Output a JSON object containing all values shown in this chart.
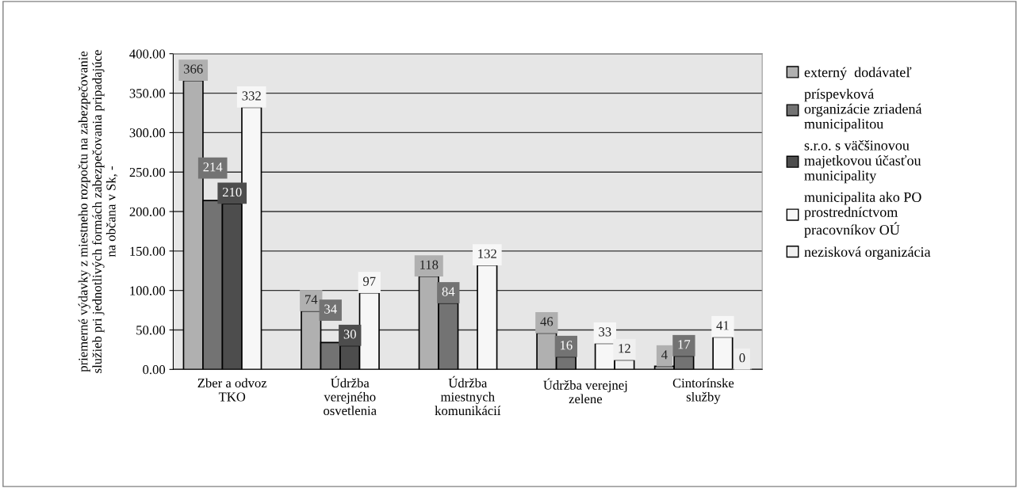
{
  "chart_data": {
    "type": "bar",
    "ylabel": "priemerné výdavky z miestneho rozpočtu na zabezpečovanie\nslužieb pri jednotlivých formách zabezpečovania pripadajúce\nna občana v Sk, -",
    "categories": [
      "Zber a odvoz\nTKO",
      "Údržba\nverejného\nosvetlenia",
      "Údržba\nmiestnych\nkomunikácií",
      "Údržba verejnej\nzelene",
      "Cintorínske\nslužby"
    ],
    "series": [
      {
        "name": "externý  dodávateľ",
        "color": "#b0b0b0",
        "values": [
          366,
          74,
          118,
          46,
          4
        ]
      },
      {
        "name": "príspevková\norganizácie zriadená\nmunicipalitou",
        "color": "#737373",
        "values": [
          214,
          34,
          84,
          16,
          17
        ]
      },
      {
        "name": "s.r.o. s väčšinovou\nmajetkovou účasťou\nmunicipality",
        "color": "#4d4d4d",
        "values": [
          210,
          30,
          null,
          null,
          null
        ]
      },
      {
        "name": "municipalita ako PO\nprostredníctvom\npracovníkov OÚ",
        "color": "#f7f7f7",
        "values": [
          332,
          97,
          132,
          33,
          41
        ]
      },
      {
        "name": "nezisková organizácia",
        "color": "#f0f0f0",
        "values": [
          null,
          null,
          null,
          12,
          0
        ]
      }
    ],
    "ylim": [
      0,
      400
    ],
    "yticks": [
      {
        "value": 0,
        "label": "0.00"
      },
      {
        "value": 50,
        "label": "50.00"
      },
      {
        "value": 100,
        "label": "100.00"
      },
      {
        "value": 150,
        "label": "150.00"
      },
      {
        "value": 200,
        "label": "200.00"
      },
      {
        "value": 250,
        "label": "250.00"
      },
      {
        "value": 300,
        "label": "300.00"
      },
      {
        "value": 350,
        "label": "350.00"
      },
      {
        "value": 400,
        "label": "400.00"
      }
    ],
    "grid": "y",
    "legend": "right",
    "data_labels": true
  }
}
